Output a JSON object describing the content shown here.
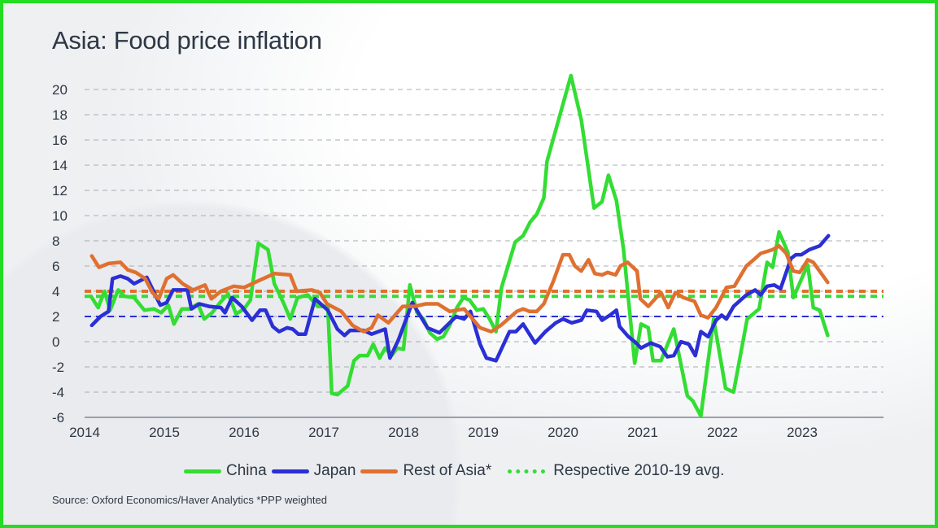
{
  "title": "Asia: Food price inflation",
  "source": "Source: Oxford Economics/Haver Analytics *PPP weighted",
  "chart_data": {
    "type": "line",
    "title": "Asia: Food price inflation",
    "xlabel": "",
    "ylabel": "",
    "xlim": [
      2014,
      2024
    ],
    "ylim": [
      -6,
      20
    ],
    "x_ticks": [
      "2014",
      "2015",
      "2016",
      "2017",
      "2018",
      "2019",
      "2020",
      "2021",
      "2022",
      "2023"
    ],
    "y_ticks": [
      "-6",
      "-4",
      "-2",
      "0",
      "2",
      "4",
      "6",
      "8",
      "10",
      "12",
      "14",
      "16",
      "18",
      "20"
    ],
    "grid": "horizontal dashed",
    "legend_position": "bottom",
    "series": [
      {
        "name": "China",
        "color": "#33dd33",
        "x": [
          2014.08,
          2014.17,
          2014.25,
          2014.32,
          2014.42,
          2014.5,
          2014.62,
          2014.75,
          2014.87,
          2014.96,
          2015.05,
          2015.12,
          2015.22,
          2015.32,
          2015.42,
          2015.5,
          2015.6,
          2015.7,
          2015.8,
          2015.9,
          2016.0,
          2016.08,
          2016.18,
          2016.3,
          2016.38,
          2016.5,
          2016.58,
          2016.67,
          2016.8,
          2016.92,
          2017.05,
          2017.1,
          2017.17,
          2017.3,
          2017.38,
          2017.45,
          2017.55,
          2017.62,
          2017.7,
          2017.77,
          2017.85,
          2017.92,
          2018.0,
          2018.08,
          2018.17,
          2018.25,
          2018.33,
          2018.42,
          2018.5,
          2018.58,
          2018.67,
          2018.75,
          2018.83,
          2018.92,
          2019.0,
          2019.08,
          2019.16,
          2019.23,
          2019.4,
          2019.5,
          2019.59,
          2019.67,
          2019.76,
          2019.8,
          2020.1,
          2020.23,
          2020.39,
          2020.49,
          2020.57,
          2020.67,
          2020.76,
          2020.9,
          2020.98,
          2021.07,
          2021.13,
          2021.23,
          2021.39,
          2021.56,
          2021.63,
          2021.73,
          2021.89,
          2022.04,
          2022.14,
          2022.31,
          2022.46,
          2022.56,
          2022.63,
          2022.71,
          2022.82,
          2022.89,
          2023.07,
          2023.14,
          2023.22,
          2023.32
        ],
        "values": [
          3.6,
          2.7,
          4.0,
          2.5,
          4.1,
          3.6,
          3.5,
          2.5,
          2.6,
          2.3,
          2.9,
          1.4,
          2.6,
          2.6,
          3.0,
          1.8,
          2.3,
          3.1,
          3.8,
          2.2,
          2.6,
          3.3,
          7.8,
          7.3,
          4.6,
          3.0,
          1.8,
          3.5,
          3.7,
          2.8,
          2.8,
          -4.1,
          -4.2,
          -3.5,
          -1.5,
          -1.1,
          -1.1,
          -0.2,
          -1.3,
          -0.5,
          -1.1,
          -0.5,
          -0.6,
          4.5,
          2.3,
          1.8,
          0.7,
          0.2,
          0.4,
          1.3,
          2.7,
          3.5,
          3.3,
          2.5,
          2.6,
          1.8,
          0.8,
          4.3,
          7.9,
          8.4,
          9.5,
          10.1,
          11.4,
          14.3,
          21.1,
          17.6,
          10.6,
          11.1,
          13.2,
          11.2,
          7.3,
          -1.7,
          1.4,
          1.1,
          -1.5,
          -1.5,
          1.0,
          -4.3,
          -4.7,
          -5.9,
          1.8,
          -3.7,
          -4.0,
          1.8,
          2.6,
          6.3,
          5.9,
          8.7,
          7.1,
          3.5,
          6.1,
          2.7,
          2.5,
          0.5
        ]
      },
      {
        "name": "Japan",
        "color": "#2b2fd6",
        "x": [
          2014.09,
          2014.2,
          2014.3,
          2014.35,
          2014.45,
          2014.54,
          2014.62,
          2014.78,
          2014.95,
          2015.03,
          2015.11,
          2015.29,
          2015.34,
          2015.44,
          2015.56,
          2015.71,
          2015.76,
          2015.85,
          2015.97,
          2016.1,
          2016.2,
          2016.27,
          2016.36,
          2016.44,
          2016.54,
          2016.61,
          2016.68,
          2016.77,
          2016.89,
          2017.05,
          2017.17,
          2017.26,
          2017.33,
          2017.5,
          2017.6,
          2017.77,
          2017.83,
          2017.94,
          2018.11,
          2018.3,
          2018.45,
          2018.66,
          2018.76,
          2018.84,
          2018.96,
          2019.04,
          2019.16,
          2019.33,
          2019.41,
          2019.5,
          2019.65,
          2019.78,
          2019.91,
          2020.0,
          2020.11,
          2020.23,
          2020.3,
          2020.42,
          2020.49,
          2020.59,
          2020.67,
          2020.71,
          2020.82,
          2020.9,
          2020.98,
          2021.1,
          2021.22,
          2021.31,
          2021.39,
          2021.48,
          2021.58,
          2021.66,
          2021.73,
          2021.82,
          2021.92,
          2021.99,
          2022.05,
          2022.14,
          2022.3,
          2022.41,
          2022.48,
          2022.56,
          2022.65,
          2022.73,
          2022.86,
          2022.92,
          2022.99,
          2023.09,
          2023.22,
          2023.33
        ],
        "values": [
          1.3,
          2.0,
          2.4,
          5.0,
          5.2,
          5.0,
          4.6,
          5.1,
          2.9,
          3.1,
          4.1,
          4.1,
          2.6,
          3.0,
          2.8,
          2.7,
          2.3,
          3.5,
          2.8,
          1.7,
          2.5,
          2.5,
          1.2,
          0.8,
          1.1,
          1.0,
          0.6,
          0.6,
          3.4,
          2.5,
          1.0,
          0.5,
          0.9,
          0.9,
          0.6,
          1.0,
          -1.3,
          0.2,
          3.1,
          1.1,
          0.7,
          2.0,
          1.8,
          2.4,
          -0.2,
          -1.3,
          -1.5,
          0.8,
          0.8,
          1.4,
          -0.1,
          0.8,
          1.5,
          1.8,
          1.5,
          1.7,
          2.5,
          2.4,
          1.7,
          2.1,
          2.5,
          1.2,
          0.4,
          0.0,
          -0.5,
          -0.1,
          -0.4,
          -1.2,
          -1.1,
          0.0,
          -0.2,
          -1.1,
          0.8,
          0.4,
          1.7,
          2.1,
          1.8,
          2.8,
          3.7,
          4.1,
          3.7,
          4.4,
          4.5,
          4.2,
          6.6,
          6.9,
          6.9,
          7.3,
          7.6,
          8.4
        ]
      },
      {
        "name": "Rest of Asia*",
        "color": "#e07030",
        "x": [
          2014.09,
          2014.18,
          2014.3,
          2014.45,
          2014.54,
          2014.64,
          2014.76,
          2014.85,
          2014.93,
          2015.03,
          2015.11,
          2015.23,
          2015.36,
          2015.51,
          2015.59,
          2015.71,
          2015.87,
          2016.0,
          2016.17,
          2016.38,
          2016.58,
          2016.66,
          2016.85,
          2016.95,
          2017.04,
          2017.22,
          2017.36,
          2017.5,
          2017.6,
          2017.68,
          2017.81,
          2017.99,
          2018.14,
          2018.28,
          2018.43,
          2018.58,
          2018.76,
          2018.96,
          2019.1,
          2019.22,
          2019.42,
          2019.5,
          2019.58,
          2019.67,
          2019.76,
          2019.88,
          2020.0,
          2020.08,
          2020.15,
          2020.23,
          2020.32,
          2020.4,
          2020.49,
          2020.56,
          2020.66,
          2020.72,
          2020.81,
          2020.93,
          2020.97,
          2021.07,
          2021.17,
          2021.23,
          2021.32,
          2021.41,
          2021.51,
          2021.65,
          2021.73,
          2021.82,
          2021.92,
          2022.05,
          2022.15,
          2022.3,
          2022.41,
          2022.48,
          2022.63,
          2022.71,
          2022.8,
          2022.89,
          2022.97,
          2023.07,
          2023.14,
          2023.32
        ],
        "values": [
          6.8,
          5.9,
          6.2,
          6.3,
          5.7,
          5.5,
          5.0,
          3.9,
          3.4,
          5.0,
          5.3,
          4.6,
          4.1,
          4.5,
          3.4,
          4.0,
          4.4,
          4.3,
          4.8,
          5.4,
          5.3,
          4.0,
          4.1,
          3.9,
          3.0,
          2.4,
          1.3,
          0.8,
          1.1,
          2.1,
          1.5,
          2.8,
          2.8,
          3.0,
          3.0,
          2.4,
          2.6,
          1.1,
          0.8,
          1.3,
          2.4,
          2.6,
          2.4,
          2.4,
          3.0,
          4.8,
          6.9,
          6.9,
          6.0,
          5.6,
          6.5,
          5.4,
          5.3,
          5.5,
          5.3,
          6.0,
          6.3,
          5.6,
          3.4,
          2.8,
          3.5,
          3.9,
          2.7,
          3.9,
          3.5,
          3.2,
          2.1,
          1.9,
          2.7,
          4.3,
          4.4,
          6.0,
          6.6,
          7.0,
          7.3,
          7.6,
          7.0,
          5.6,
          5.5,
          6.5,
          6.3,
          4.7
        ]
      }
    ],
    "reference_lines": [
      {
        "name": "China 2010-19 avg",
        "value": 3.6,
        "color": "#33dd33"
      },
      {
        "name": "Japan 2010-19 avg",
        "value": 2.0,
        "color": "#2b2fd6"
      },
      {
        "name": "Rest of Asia 2010-19 avg",
        "value": 4.0,
        "color": "#e07030"
      }
    ],
    "legend": [
      "China",
      "Japan",
      "Rest of Asia*",
      "Respective 2010-19 avg."
    ]
  }
}
